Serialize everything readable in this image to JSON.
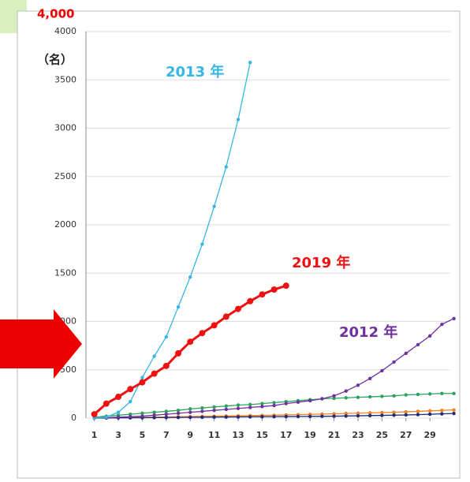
{
  "chart_data": {
    "type": "line",
    "unit_label": "（名）",
    "top_label": "4,000",
    "x": [
      1,
      2,
      3,
      4,
      5,
      6,
      7,
      8,
      9,
      10,
      11,
      12,
      13,
      14,
      15,
      16,
      17,
      18,
      19,
      20,
      21,
      22,
      23,
      24,
      25,
      26,
      27,
      28,
      29,
      30,
      31
    ],
    "xlim": [
      0.3,
      30.7
    ],
    "xticks": [
      1,
      3,
      5,
      7,
      9,
      11,
      13,
      15,
      17,
      19,
      21,
      23,
      25,
      27,
      29
    ],
    "ylim": [
      0,
      4000
    ],
    "yticks": [
      0,
      500,
      1000,
      1500,
      2000,
      2500,
      3000,
      3500,
      4000
    ],
    "grid": true,
    "series": [
      {
        "color": "#f58220",
        "values": [
          0,
          2,
          4,
          6,
          8,
          10,
          12,
          14,
          16,
          18,
          20,
          22,
          24,
          26,
          28,
          30,
          33,
          36,
          39,
          42,
          45,
          48,
          51,
          54,
          57,
          60,
          65,
          70,
          75,
          80,
          85
        ]
      },
      {
        "color": "#1f2a7a",
        "values": [
          0,
          1,
          2,
          3,
          4,
          5,
          6,
          7,
          8,
          9,
          10,
          11,
          12,
          13,
          14,
          15,
          16,
          17,
          18,
          19,
          20,
          22,
          24,
          26,
          28,
          30,
          33,
          36,
          40,
          44,
          48
        ]
      },
      {
        "color": "#2aa35a",
        "values": [
          10,
          20,
          30,
          40,
          50,
          60,
          70,
          80,
          95,
          105,
          115,
          125,
          135,
          140,
          150,
          160,
          170,
          180,
          190,
          200,
          205,
          210,
          215,
          220,
          225,
          230,
          240,
          245,
          250,
          255,
          255
        ]
      },
      {
        "name": "2012 年",
        "color": "#7030a0",
        "values": [
          0,
          5,
          10,
          15,
          20,
          30,
          40,
          50,
          60,
          70,
          80,
          90,
          100,
          110,
          120,
          130,
          150,
          165,
          180,
          200,
          230,
          280,
          340,
          410,
          490,
          580,
          670,
          760,
          850,
          970,
          1030
        ]
      },
      {
        "name": "2013 年",
        "color": "#35b6e3",
        "values": [
          0,
          10,
          60,
          170,
          420,
          640,
          840,
          1150,
          1460,
          1800,
          2190,
          2600,
          3090,
          3680,
          null,
          null,
          null,
          null,
          null,
          null,
          null,
          null,
          null,
          null,
          null,
          null,
          null,
          null,
          null,
          null,
          null
        ]
      },
      {
        "name": "2019 年",
        "color": "#ee1111",
        "values": [
          40,
          150,
          220,
          300,
          370,
          460,
          540,
          670,
          790,
          880,
          960,
          1050,
          1130,
          1210,
          1280,
          1330,
          1370,
          null,
          null,
          null,
          null,
          null,
          null,
          null,
          null,
          null,
          null,
          null,
          null,
          null,
          null
        ]
      }
    ]
  }
}
